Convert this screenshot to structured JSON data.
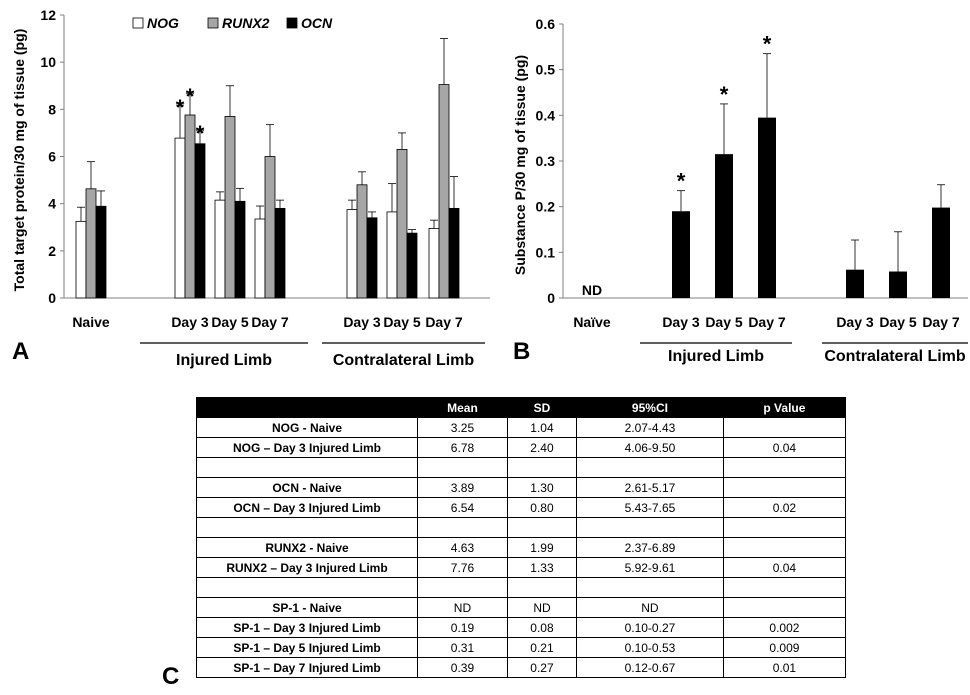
{
  "panels": {
    "a": "A",
    "b": "B",
    "c": "C"
  },
  "chart_data": [
    {
      "type": "bar",
      "ylabel": "Total target  protein/30 mg of  tissue (pg)",
      "ylim": [
        0,
        12
      ],
      "yticks": [
        0,
        2,
        4,
        6,
        8,
        10,
        12
      ],
      "legend_position": "top",
      "categories": [
        "Naive",
        "Day 3",
        "Day 5",
        "Day 7",
        "Day 3",
        "Day 5",
        "Day 7"
      ],
      "groups": [
        {
          "label": "Injured Limb",
          "categories": [
            1,
            2,
            3
          ]
        },
        {
          "label": "Contralateral Limb",
          "categories": [
            4,
            5,
            6
          ]
        }
      ],
      "series": [
        {
          "name": "NOG",
          "color": "#ffffff",
          "values": [
            3.25,
            6.78,
            4.15,
            3.35,
            3.75,
            3.65,
            2.95
          ],
          "errors": [
            0.6,
            1.4,
            0.35,
            0.55,
            0.4,
            1.2,
            0.35
          ],
          "significant": [
            false,
            true,
            false,
            false,
            false,
            false,
            false
          ]
        },
        {
          "name": "RUNX2",
          "color": "#a6a6a6",
          "values": [
            4.63,
            7.76,
            7.7,
            6.0,
            4.8,
            6.3,
            9.05
          ],
          "errors": [
            1.15,
            0.9,
            1.3,
            1.35,
            0.55,
            0.7,
            1.95
          ],
          "significant": [
            false,
            true,
            false,
            false,
            false,
            false,
            false
          ]
        },
        {
          "name": "OCN",
          "color": "#000000",
          "values": [
            3.89,
            6.54,
            4.1,
            3.8,
            3.4,
            2.75,
            3.8
          ],
          "errors": [
            0.65,
            0.55,
            0.55,
            0.35,
            0.25,
            0.15,
            1.35
          ],
          "significant": [
            false,
            true,
            false,
            false,
            false,
            false,
            false
          ]
        }
      ],
      "significance_marker": "*"
    },
    {
      "type": "bar",
      "ylabel": "Substance P/30 mg of  tissue (pg)",
      "ylim": [
        0,
        0.6
      ],
      "yticks": [
        "0",
        "0.1",
        "0.2",
        "0.3",
        "0.4",
        "0.5",
        "0.6"
      ],
      "categories": [
        "Naïve",
        "Day 3",
        "Day 5",
        "Day 7",
        "Day 3",
        "Day 5",
        "Day 7"
      ],
      "groups": [
        {
          "label": "Injured Limb",
          "categories": [
            1,
            2,
            3
          ]
        },
        {
          "label": "Contralateral Limb",
          "categories": [
            4,
            5,
            6
          ]
        }
      ],
      "series": [
        {
          "color": "#000000",
          "values": [
            null,
            0.19,
            0.315,
            0.395,
            0.062,
            0.058,
            0.198
          ],
          "errors": [
            null,
            0.045,
            0.11,
            0.14,
            0.065,
            0.087,
            0.05
          ],
          "significant": [
            false,
            true,
            true,
            true,
            false,
            false,
            false
          ]
        }
      ],
      "nd_label": "ND",
      "significance_marker": "*"
    },
    {
      "type": "table",
      "columns": [
        "",
        "Mean",
        "SD",
        "95%CI",
        "p Value"
      ],
      "rows": [
        [
          "NOG - Naive",
          "3.25",
          "1.04",
          "2.07-4.43",
          ""
        ],
        [
          "NOG – Day 3 Injured Limb",
          "6.78",
          "2.40",
          "4.06-9.50",
          "0.04"
        ],
        [
          "",
          "",
          "",
          "",
          ""
        ],
        [
          "OCN - Naive",
          "3.89",
          "1.30",
          "2.61-5.17",
          ""
        ],
        [
          "OCN – Day 3 Injured Limb",
          "6.54",
          "0.80",
          "5.43-7.65",
          "0.02"
        ],
        [
          "",
          "",
          "",
          "",
          ""
        ],
        [
          "RUNX2 - Naive",
          "4.63",
          "1.99",
          "2.37-6.89",
          ""
        ],
        [
          "RUNX2 – Day 3 Injured Limb",
          "7.76",
          "1.33",
          "5.92-9.61",
          "0.04"
        ],
        [
          "",
          "",
          "",
          "",
          ""
        ],
        [
          "SP-1 - Naive",
          "ND",
          "ND",
          "ND",
          ""
        ],
        [
          "SP-1 – Day 3 Injured Limb",
          "0.19",
          "0.08",
          "0.10-0.27",
          "0.002"
        ],
        [
          "SP-1 – Day 5 Injured Limb",
          "0.31",
          "0.21",
          "0.10-0.53",
          "0.009"
        ],
        [
          "SP-1 – Day 7 Injured Limb",
          "0.39",
          "0.27",
          "0.12-0.67",
          "0.01"
        ]
      ]
    }
  ]
}
